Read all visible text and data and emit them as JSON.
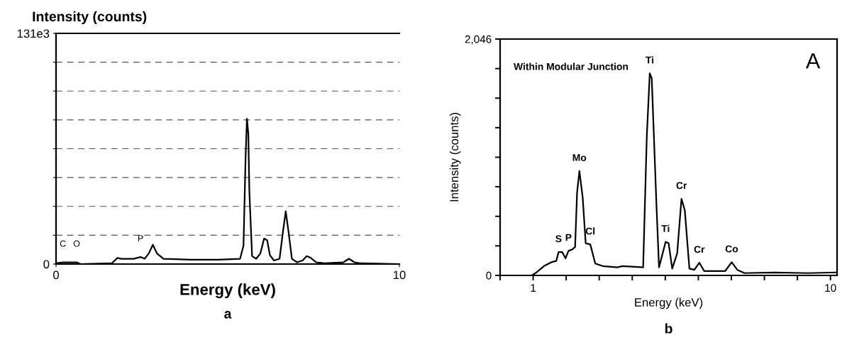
{
  "chart_data": [
    {
      "type": "line",
      "xlabel": "Energy (keV)",
      "ylabel": "Intensity (counts)",
      "series": [
        {
          "color": "#000000",
          "x": [
            0,
            0.2,
            0.44,
            0.6,
            0.71,
            1.63,
            1.79,
            1.9,
            2.26,
            2.46,
            2.58,
            2.7,
            2.82,
            2.94,
            3.13,
            3.93,
            4.72,
            5.36,
            5.46,
            5.52,
            5.56,
            5.6,
            5.63,
            5.71,
            5.83,
            5.95,
            6.06,
            6.15,
            6.23,
            6.35,
            6.51,
            6.61,
            6.69,
            6.77,
            6.87,
            7.02,
            7.18,
            7.3,
            7.42,
            7.58,
            7.82,
            8.37,
            8.53,
            8.69,
            8.85,
            10
          ],
          "values": [
            500,
            1000,
            1000,
            1000,
            0,
            500,
            3500,
            3000,
            3000,
            4000,
            3000,
            6000,
            11000,
            6000,
            3000,
            2500,
            2500,
            3000,
            10500,
            60000,
            82500,
            74000,
            41500,
            4500,
            3000,
            6000,
            14500,
            13500,
            5000,
            2000,
            3000,
            18500,
            30000,
            18500,
            3000,
            1000,
            2000,
            4500,
            3500,
            1000,
            500,
            1000,
            3000,
            1000,
            500,
            0
          ]
        }
      ],
      "xlim": [
        0,
        10
      ],
      "xticks": [
        0,
        10
      ],
      "ylim": [
        0,
        131000
      ],
      "yticks": [
        0,
        {
          "value": 16375,
          "label": null
        },
        {
          "value": 32750,
          "label": null
        },
        {
          "value": 49125,
          "label": null
        },
        {
          "value": 65500,
          "label": null
        },
        {
          "value": 81875,
          "label": null
        },
        {
          "value": 98250,
          "label": null
        },
        {
          "value": 114625,
          "label": null
        },
        {
          "value": 131000,
          "label": "131e3"
        }
      ],
      "grid": "y",
      "line_style": "solid",
      "annotations": [
        {
          "text": "C",
          "x": 0.2,
          "y": 1000
        },
        {
          "text": "O",
          "x": 0.6,
          "y": 1000
        },
        {
          "text": "P",
          "x": 2.46,
          "y": 4000
        },
        "a"
      ]
    },
    {
      "type": "line",
      "xlabel": "Energy (keV)",
      "ylabel": "Intensity (counts)",
      "series": [
        {
          "color": "#000000",
          "x": [
            0,
            0.96,
            1.1,
            1.33,
            1.55,
            1.7,
            1.77,
            1.88,
            1.98,
            2.07,
            2.18,
            2.27,
            2.33,
            2.4,
            2.5,
            2.59,
            2.73,
            2.88,
            3.1,
            3.55,
            3.7,
            4.33,
            4.44,
            4.53,
            4.59,
            4.73,
            4.81,
            4.92,
            5.01,
            5.1,
            5.21,
            5.36,
            5.49,
            5.59,
            5.73,
            5.88,
            6.03,
            6.18,
            6.81,
            7.01,
            7.18,
            7.4,
            8.29,
            9.33,
            10.18
          ],
          "values": [
            0,
            0,
            26,
            81,
            114,
            125,
            202,
            202,
            147,
            213,
            224,
            246,
            718,
            904,
            674,
            279,
            268,
            103,
            81,
            70,
            81,
            70,
            1201,
            1749,
            1706,
            630,
            70,
            191,
            290,
            279,
            59,
            191,
            663,
            564,
            59,
            48,
            110,
            37,
            37,
            114,
            48,
            20,
            26,
            20,
            26
          ]
        }
      ],
      "xlim": [
        0,
        10.2
      ],
      "xticks": [
        {
          "value": 0,
          "label": null
        },
        1,
        {
          "value": 2,
          "label": null
        },
        {
          "value": 3,
          "label": null
        },
        {
          "value": 4,
          "label": null
        },
        {
          "value": 5,
          "label": null
        },
        {
          "value": 6,
          "label": null
        },
        {
          "value": 7,
          "label": null
        },
        {
          "value": 8,
          "label": null
        },
        {
          "value": 9,
          "label": null
        },
        10
      ],
      "ylim": [
        0,
        2046
      ],
      "yticks": [
        0,
        {
          "value": 255.75,
          "label": null
        },
        {
          "value": 511.5,
          "label": null
        },
        {
          "value": 767.25,
          "label": null
        },
        {
          "value": 1023,
          "label": null
        },
        {
          "value": 1278.75,
          "label": null
        },
        {
          "value": 1534.5,
          "label": null
        },
        {
          "value": 1790.25,
          "label": null
        },
        {
          "value": 2046,
          "label": "2,046"
        }
      ],
      "grid": false,
      "line_style": "solid",
      "annotations": [
        {
          "text": "S",
          "x": 1.77,
          "y": 202
        },
        {
          "text": "P",
          "x": 2.07,
          "y": 213
        },
        {
          "text": "Mo",
          "x": 2.4,
          "y": 904
        },
        {
          "text": "Cl",
          "x": 2.73,
          "y": 268
        },
        {
          "text": "Ti",
          "x": 4.53,
          "y": 1749
        },
        {
          "text": "Ti",
          "x": 5.01,
          "y": 290
        },
        {
          "text": "Cr",
          "x": 5.49,
          "y": 663
        },
        {
          "text": "Cr",
          "x": 6.03,
          "y": 110
        },
        {
          "text": "Co",
          "x": 7.01,
          "y": 114
        },
        "Within Modular Junction",
        "A",
        "b"
      ]
    }
  ]
}
